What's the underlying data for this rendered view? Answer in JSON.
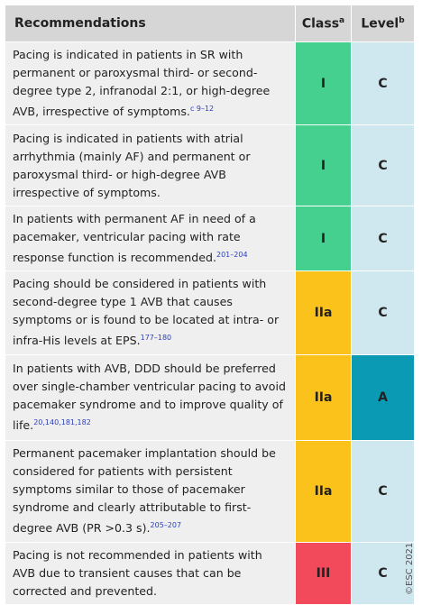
{
  "header": {
    "recommendations": "Recommendations",
    "class": "Class",
    "class_note": "a",
    "level": "Level",
    "level_note": "b"
  },
  "rows": [
    {
      "text": "Pacing is indicated in patients in SR with permanent or paroxysmal third- or second-degree type 2, infranodal 2:1, or high-degree AVB, irrespective of symptoms.",
      "refs": "c 9–12",
      "class": "I",
      "level": "C"
    },
    {
      "text": "Pacing is indicated in patients with atrial arrhythmia (mainly AF) and permanent or paroxysmal third- or high-degree AVB irrespective of symptoms.",
      "refs": "",
      "class": "I",
      "level": "C"
    },
    {
      "text": "In patients with permanent AF in need of a pacemaker, ventricular pacing with rate response function is recommended.",
      "refs": "201–204",
      "class": "I",
      "level": "C"
    },
    {
      "text": "Pacing should be considered in patients with second-degree type 1 AVB that causes symptoms or is found to be located at intra- or infra-His levels at EPS.",
      "refs": "177–180",
      "class": "IIa",
      "level": "C"
    },
    {
      "text": "In patients with AVB, DDD should be preferred over single-chamber ventricular pacing to avoid pacemaker syndrome and to improve quality of life.",
      "refs": "20,140,181,182",
      "class": "IIa",
      "level": "A"
    },
    {
      "text": "Permanent pacemaker implantation should be considered for patients with persistent symptoms similar to those of pacemaker syndrome and clearly attributable to first-degree AVB (PR >0.3 s).",
      "refs": "205–207",
      "class": "IIa",
      "level": "C"
    },
    {
      "text": "Pacing is not recommended in patients with AVB due to transient causes that can be corrected and prevented.",
      "refs": "",
      "class": "III",
      "level": "C"
    }
  ],
  "watermark": "©ESC 2021"
}
